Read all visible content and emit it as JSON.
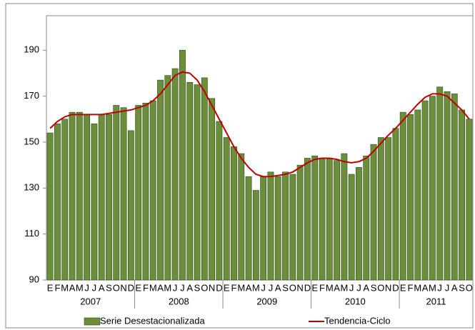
{
  "chart_data": {
    "type": "bar-line",
    "categories": [
      "E",
      "F",
      "M",
      "A",
      "M",
      "J",
      "J",
      "A",
      "S",
      "O",
      "N",
      "D",
      "E",
      "F",
      "M",
      "A",
      "M",
      "J",
      "J",
      "A",
      "S",
      "O",
      "N",
      "D",
      "E",
      "F",
      "M",
      "A",
      "M",
      "J",
      "J",
      "A",
      "S",
      "O",
      "N",
      "D",
      "E",
      "F",
      "M",
      "A",
      "M",
      "J",
      "J",
      "A",
      "S",
      "O",
      "N",
      "D",
      "E",
      "F",
      "M",
      "A",
      "M",
      "J",
      "J",
      "A",
      "S",
      "O"
    ],
    "years": [
      "2007",
      "2008",
      "2009",
      "2010",
      "2011"
    ],
    "series": [
      {
        "name": "Serie Desestacionalizada",
        "color": "#6b8e3a",
        "kind": "bar",
        "values": [
          154,
          158,
          160,
          163,
          163,
          162,
          158,
          162,
          162,
          166,
          165,
          155,
          166,
          167,
          168,
          177,
          179,
          182,
          190,
          176,
          175,
          178,
          169,
          159,
          152,
          148,
          145,
          135,
          129,
          135,
          137,
          135,
          137,
          136,
          140,
          143,
          144,
          143,
          143,
          142,
          145,
          136,
          139,
          144,
          149,
          152,
          152,
          156,
          163,
          162,
          164,
          168,
          170,
          174,
          172,
          171,
          164,
          160
        ]
      },
      {
        "name": "Tendencia-Ciclo",
        "color": "#c00000",
        "kind": "line",
        "values": [
          156,
          159,
          161,
          162,
          162,
          162,
          162,
          162,
          162.5,
          163,
          163.5,
          164,
          165,
          166,
          168,
          171,
          175,
          179,
          180.5,
          180,
          177,
          172,
          166,
          160,
          154,
          148,
          143,
          139,
          136,
          135,
          135,
          135.5,
          136,
          137,
          139,
          141,
          142.5,
          143,
          143,
          142.5,
          141.5,
          141,
          141.5,
          143,
          146,
          149.5,
          153,
          156,
          159.5,
          163,
          166.5,
          169.5,
          171,
          171,
          170,
          167,
          164,
          160
        ]
      }
    ],
    "ylim": [
      90,
      205
    ],
    "yticks": [
      90,
      110,
      130,
      150,
      170,
      190
    ]
  }
}
